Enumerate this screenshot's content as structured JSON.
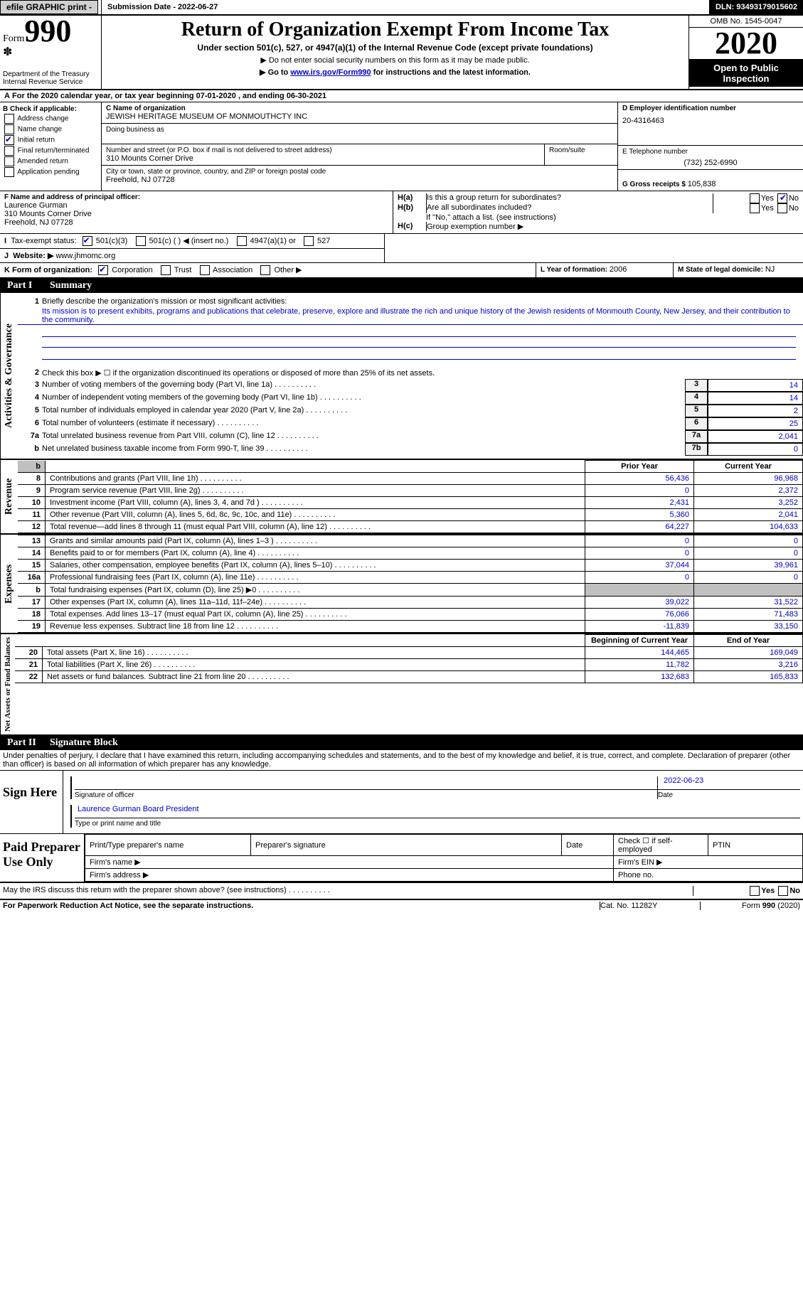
{
  "topbar": {
    "efile": "efile GRAPHIC print -",
    "subdate_label": "Submission Date - ",
    "subdate": "2022-06-27",
    "dln_label": "DLN: ",
    "dln": "93493179015602"
  },
  "header": {
    "form_prefix": "Form",
    "form_num": "990",
    "dept": "Department of the Treasury\nInternal Revenue Service",
    "title": "Return of Organization Exempt From Income Tax",
    "subtitle": "Under section 501(c), 527, or 4947(a)(1) of the Internal Revenue Code (except private foundations)",
    "note1": "▶ Do not enter social security numbers on this form as it may be made public.",
    "note2_pre": "▶ Go to ",
    "note2_link": "www.irs.gov/Form990",
    "note2_post": " for instructions and the latest information.",
    "omb": "OMB No. 1545-0047",
    "year": "2020",
    "open": "Open to Public Inspection"
  },
  "A": {
    "text": "For the 2020 calendar year, or tax year beginning 07-01-2020   , and ending 06-30-2021"
  },
  "B": {
    "title": "B Check if applicable:",
    "items": [
      "Address change",
      "Name change",
      "Initial return",
      "Final return/terminated",
      "Amended return",
      "Application pending"
    ],
    "checked_idx": 2
  },
  "C": {
    "name_label": "C Name of organization",
    "name": "JEWISH HERITAGE MUSEUM OF MONMOUTHCTY INC",
    "dba_label": "Doing business as",
    "dba": "",
    "addr_label": "Number and street (or P.O. box if mail is not delivered to street address)",
    "room_label": "Room/suite",
    "addr": "310 Mounts Corner Drive",
    "city_label": "City or town, state or province, country, and ZIP or foreign postal code",
    "city": "Freehold, NJ  07728"
  },
  "D": {
    "label": "D Employer identification number",
    "value": "20-4316463"
  },
  "E": {
    "label": "E Telephone number",
    "value": "(732) 252-6990"
  },
  "G": {
    "label": "G Gross receipts $ ",
    "value": "105,838"
  },
  "F": {
    "label": "F  Name and address of principal officer:",
    "name": "Laurence Gurman",
    "addr": "310 Mounts Corner Drive",
    "city": "Freehold, NJ  07728"
  },
  "H": {
    "a": "Is this a group return for subordinates?",
    "b": "Are all subordinates included?",
    "note": "If \"No,\" attach a list. (see instructions)",
    "c": "Group exemption number ▶",
    "yes": "Yes",
    "no": "No"
  },
  "I": {
    "label": "Tax-exempt status:",
    "opts": [
      "501(c)(3)",
      "501(c) (  ) ◀ (insert no.)",
      "4947(a)(1) or",
      "527"
    ],
    "checked_idx": 0
  },
  "J": {
    "label": "Website: ▶",
    "value": "www.jhmomc.org",
    "I": "I",
    "J": "J"
  },
  "K": {
    "label": "K Form of organization:",
    "opts": [
      "Corporation",
      "Trust",
      "Association",
      "Other ▶"
    ],
    "checked_idx": 0
  },
  "L": {
    "label": "L Year of formation: ",
    "value": "2006"
  },
  "M": {
    "label": "M State of legal domicile: ",
    "value": "NJ"
  },
  "partI": {
    "pt": "Part I",
    "title": "Summary"
  },
  "mission": {
    "q": "Briefly describe the organization's mission or most significant activities:",
    "text": "Its mission is to present exhibits, programs and publications that celebrate, preserve, explore and illustrate the rich and unique history of the Jewish residents of Monmouth County, New Jersey, and their contribution to the community."
  },
  "gov": {
    "label": "Activities & Governance",
    "line2": "Check this box ▶ ☐  if the organization discontinued its operations or disposed of more than 25% of its net assets.",
    "rows": [
      {
        "n": "3",
        "desc": "Number of voting members of the governing body (Part VI, line 1a)",
        "box": "3",
        "val": "14"
      },
      {
        "n": "4",
        "desc": "Number of independent voting members of the governing body (Part VI, line 1b)",
        "box": "4",
        "val": "14"
      },
      {
        "n": "5",
        "desc": "Total number of individuals employed in calendar year 2020 (Part V, line 2a)",
        "box": "5",
        "val": "2"
      },
      {
        "n": "6",
        "desc": "Total number of volunteers (estimate if necessary)",
        "box": "6",
        "val": "25"
      },
      {
        "n": "7a",
        "desc": "Total unrelated business revenue from Part VIII, column (C), line 12",
        "box": "7a",
        "val": "2,041"
      },
      {
        "n": "b",
        "desc": "Net unrelated business taxable income from Form 990-T, line 39",
        "box": "7b",
        "val": "0"
      }
    ]
  },
  "rev": {
    "label": "Revenue",
    "hdr_py": "Prior Year",
    "hdr_cy": "Current Year",
    "rows": [
      {
        "n": "8",
        "desc": "Contributions and grants (Part VIII, line 1h)",
        "py": "56,436",
        "cy": "96,968"
      },
      {
        "n": "9",
        "desc": "Program service revenue (Part VIII, line 2g)",
        "py": "0",
        "cy": "2,372"
      },
      {
        "n": "10",
        "desc": "Investment income (Part VIII, column (A), lines 3, 4, and 7d )",
        "py": "2,431",
        "cy": "3,252"
      },
      {
        "n": "11",
        "desc": "Other revenue (Part VIII, column (A), lines 5, 6d, 8c, 9c, 10c, and 11e)",
        "py": "5,360",
        "cy": "2,041"
      },
      {
        "n": "12",
        "desc": "Total revenue—add lines 8 through 11 (must equal Part VIII, column (A), line 12)",
        "py": "64,227",
        "cy": "104,633"
      }
    ]
  },
  "exp": {
    "label": "Expenses",
    "rows": [
      {
        "n": "13",
        "desc": "Grants and similar amounts paid (Part IX, column (A), lines 1–3 )",
        "py": "0",
        "cy": "0"
      },
      {
        "n": "14",
        "desc": "Benefits paid to or for members (Part IX, column (A), line 4)",
        "py": "0",
        "cy": "0"
      },
      {
        "n": "15",
        "desc": "Salaries, other compensation, employee benefits (Part IX, column (A), lines 5–10)",
        "py": "37,044",
        "cy": "39,961"
      },
      {
        "n": "16a",
        "desc": "Professional fundraising fees (Part IX, column (A), line 11e)",
        "py": "0",
        "cy": "0"
      },
      {
        "n": "b",
        "desc": "Total fundraising expenses (Part IX, column (D), line 25) ▶0",
        "py": "",
        "cy": "",
        "gray": true
      },
      {
        "n": "17",
        "desc": "Other expenses (Part IX, column (A), lines 11a–11d, 11f–24e)",
        "py": "39,022",
        "cy": "31,522"
      },
      {
        "n": "18",
        "desc": "Total expenses. Add lines 13–17 (must equal Part IX, column (A), line 25)",
        "py": "76,066",
        "cy": "71,483"
      },
      {
        "n": "19",
        "desc": "Revenue less expenses. Subtract line 18 from line 12",
        "py": "-11,839",
        "cy": "33,150"
      }
    ]
  },
  "net": {
    "label": "Net Assets or Fund Balances",
    "hdr_py": "Beginning of Current Year",
    "hdr_cy": "End of Year",
    "rows": [
      {
        "n": "20",
        "desc": "Total assets (Part X, line 16)",
        "py": "144,465",
        "cy": "169,049"
      },
      {
        "n": "21",
        "desc": "Total liabilities (Part X, line 26)",
        "py": "11,782",
        "cy": "3,216"
      },
      {
        "n": "22",
        "desc": "Net assets or fund balances. Subtract line 21 from line 20",
        "py": "132,683",
        "cy": "165,833"
      }
    ]
  },
  "partII": {
    "pt": "Part II",
    "title": "Signature Block"
  },
  "sig": {
    "penal": "Under penalties of perjury, I declare that I have examined this return, including accompanying schedules and statements, and to the best of my knowledge and belief, it is true, correct, and complete. Declaration of preparer (other than officer) is based on all information of which preparer has any knowledge.",
    "sign_here": "Sign Here",
    "sig_officer": "Signature of officer",
    "date": "Date",
    "date_val": "2022-06-23",
    "name": "Laurence Gurman  Board President",
    "name_label": "Type or print name and title",
    "paid": "Paid Preparer Use Only",
    "prep_name": "Print/Type preparer's name",
    "prep_sig": "Preparer's signature",
    "prep_date": "Date",
    "check_self": "Check ☐ if self-employed",
    "ptin": "PTIN",
    "firm_name": "Firm's name  ▶",
    "firm_ein": "Firm's EIN ▶",
    "firm_addr": "Firm's address ▶",
    "phone": "Phone no.",
    "may_irs": "May the IRS discuss this return with the preparer shown above? (see instructions)",
    "paperwork": "For Paperwork Reduction Act Notice, see the separate instructions.",
    "cat": "Cat. No. 11282Y",
    "formfoot": "Form 990 (2020)"
  }
}
